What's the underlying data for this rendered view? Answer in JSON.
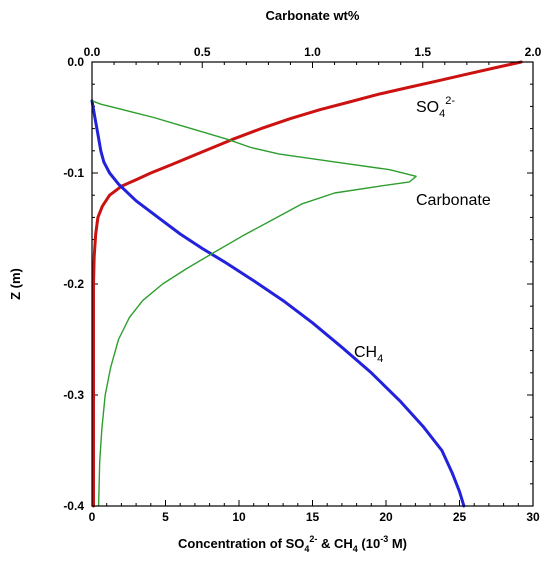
{
  "chart_data": {
    "type": "line",
    "grid": false,
    "y_axis": {
      "label": "Z (m)",
      "range": [
        -0.4,
        0.0
      ],
      "ticks": [
        0.0,
        -0.1,
        -0.2,
        -0.3,
        -0.4
      ],
      "tick_labels": [
        "0.0",
        "-0.1",
        "-0.2",
        "-0.3",
        "-0.4"
      ]
    },
    "x_bottom": {
      "label_pre": "Concentration of SO",
      "label_sub1": "4",
      "label_sup1": "2-",
      "label_mid": " & CH",
      "label_sub2": "4",
      "label_mid2": " (10",
      "label_sup2": "-3",
      "label_post": " M)",
      "range": [
        0,
        30
      ],
      "ticks": [
        0,
        5,
        10,
        15,
        20,
        25,
        30
      ],
      "tick_labels": [
        "0",
        "5",
        "10",
        "15",
        "20",
        "25",
        "30"
      ]
    },
    "x_top": {
      "label": "Carbonate wt%",
      "range": [
        0.0,
        2.0
      ],
      "ticks": [
        0.0,
        0.5,
        1.0,
        1.5,
        2.0
      ],
      "tick_labels": [
        "0.0",
        "0.5",
        "1.0",
        "1.5",
        "2.0"
      ]
    },
    "series": [
      {
        "id": "so4",
        "name_main": "SO",
        "name_sub": "4",
        "name_sup": "2-",
        "axis": "bottom",
        "color": "#cc1111",
        "points": [
          [
            29.2,
            0.0
          ],
          [
            27.5,
            -0.005
          ],
          [
            25.5,
            -0.011
          ],
          [
            23.5,
            -0.017
          ],
          [
            21.5,
            -0.023
          ],
          [
            19.5,
            -0.029
          ],
          [
            17.5,
            -0.036
          ],
          [
            15.5,
            -0.043
          ],
          [
            13.5,
            -0.051
          ],
          [
            11.5,
            -0.06
          ],
          [
            9.5,
            -0.07
          ],
          [
            7.5,
            -0.081
          ],
          [
            5.5,
            -0.092
          ],
          [
            4.0,
            -0.1
          ],
          [
            3.0,
            -0.106
          ],
          [
            2.0,
            -0.112
          ],
          [
            1.2,
            -0.12
          ],
          [
            0.7,
            -0.13
          ],
          [
            0.4,
            -0.14
          ],
          [
            0.25,
            -0.155
          ],
          [
            0.15,
            -0.175
          ],
          [
            0.1,
            -0.2
          ],
          [
            0.1,
            -0.25
          ],
          [
            0.1,
            -0.3
          ],
          [
            0.1,
            -0.35
          ],
          [
            0.1,
            -0.4
          ]
        ]
      },
      {
        "id": "ch4",
        "name_main": "CH",
        "name_sub": "4",
        "axis": "bottom",
        "color": "#2222dd",
        "points": [
          [
            0.0,
            -0.035
          ],
          [
            0.2,
            -0.05
          ],
          [
            0.4,
            -0.065
          ],
          [
            0.6,
            -0.08
          ],
          [
            0.8,
            -0.09
          ],
          [
            1.2,
            -0.1
          ],
          [
            1.8,
            -0.11
          ],
          [
            3.0,
            -0.125
          ],
          [
            4.5,
            -0.14
          ],
          [
            6.0,
            -0.155
          ],
          [
            7.5,
            -0.168
          ],
          [
            9.0,
            -0.18
          ],
          [
            11.0,
            -0.197
          ],
          [
            13.0,
            -0.215
          ],
          [
            15.0,
            -0.235
          ],
          [
            17.0,
            -0.257
          ],
          [
            19.0,
            -0.28
          ],
          [
            21.0,
            -0.306
          ],
          [
            22.5,
            -0.328
          ],
          [
            23.8,
            -0.35
          ],
          [
            24.5,
            -0.37
          ],
          [
            25.0,
            -0.387
          ],
          [
            25.3,
            -0.4
          ]
        ]
      },
      {
        "id": "carbonate",
        "name": "Carbonate",
        "axis": "top",
        "color": "#2e9e2e",
        "points": [
          [
            0.0,
            -0.035
          ],
          [
            0.04,
            -0.038
          ],
          [
            0.12,
            -0.042
          ],
          [
            0.28,
            -0.05
          ],
          [
            0.45,
            -0.06
          ],
          [
            0.62,
            -0.07
          ],
          [
            0.72,
            -0.077
          ],
          [
            0.85,
            -0.083
          ],
          [
            1.1,
            -0.09
          ],
          [
            1.35,
            -0.097
          ],
          [
            1.47,
            -0.103
          ],
          [
            1.44,
            -0.108
          ],
          [
            1.3,
            -0.112
          ],
          [
            1.1,
            -0.118
          ],
          [
            0.95,
            -0.128
          ],
          [
            0.82,
            -0.142
          ],
          [
            0.68,
            -0.157
          ],
          [
            0.55,
            -0.172
          ],
          [
            0.43,
            -0.186
          ],
          [
            0.32,
            -0.2
          ],
          [
            0.23,
            -0.215
          ],
          [
            0.17,
            -0.23
          ],
          [
            0.12,
            -0.25
          ],
          [
            0.085,
            -0.275
          ],
          [
            0.06,
            -0.3
          ],
          [
            0.045,
            -0.33
          ],
          [
            0.035,
            -0.36
          ],
          [
            0.03,
            -0.4
          ]
        ]
      }
    ]
  }
}
